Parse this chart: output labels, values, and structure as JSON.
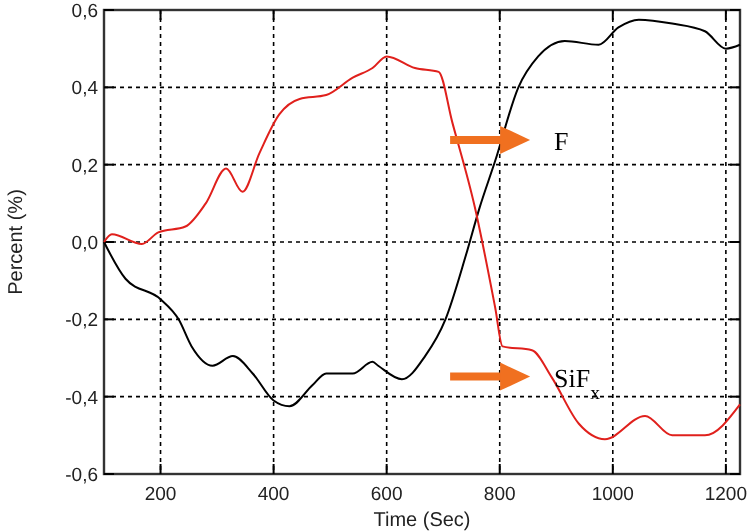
{
  "chart_data": {
    "type": "line",
    "xlabel": "Time (Sec)",
    "ylabel": "Percent (%)",
    "xlim": [
      100,
      1225
    ],
    "ylim": [
      -0.6,
      0.6
    ],
    "xticks": [
      200,
      400,
      600,
      800,
      1000,
      1200
    ],
    "yticks": [
      {
        "value": -0.6,
        "label": "-0,6"
      },
      {
        "value": -0.4,
        "label": "-0,4"
      },
      {
        "value": -0.2,
        "label": "-0,2"
      },
      {
        "value": 0,
        "label": "0,0"
      },
      {
        "value": 0.2,
        "label": "0,2"
      },
      {
        "value": 0.4,
        "label": "0,4"
      },
      {
        "value": 0.6,
        "label": "0,6"
      }
    ],
    "grid": true,
    "line_style": "solid",
    "marker": "none",
    "series": [
      {
        "name": "F",
        "color": "#000000",
        "x": [
          100,
          138,
          200,
          232,
          255,
          292,
          328,
          363,
          400,
          428,
          469,
          493,
          540,
          575,
          585,
          627,
          668,
          704,
          740,
          764,
          792,
          833,
          868,
          915,
          975,
          1010,
          1046,
          1105,
          1163,
          1200,
          1225
        ],
        "values": [
          0,
          -0.095,
          -0.148,
          -0.2,
          -0.27,
          -0.32,
          -0.295,
          -0.34,
          -0.41,
          -0.425,
          -0.37,
          -0.34,
          -0.34,
          -0.31,
          -0.32,
          -0.355,
          -0.295,
          -0.2,
          -0.035,
          0.087,
          0.21,
          0.4,
          0.48,
          0.52,
          0.51,
          0.555,
          0.575,
          0.565,
          0.545,
          0.5,
          0.51
        ]
      },
      {
        "name": "SiF$_{x}$",
        "color": "#e0201c",
        "x": [
          100,
          114,
          167,
          196,
          244,
          280,
          316,
          345,
          375,
          410,
          446,
          493,
          540,
          575,
          600,
          650,
          692,
          716,
          756,
          792,
          805,
          857,
          892,
          940,
          986,
          1057,
          1105,
          1163,
          1225
        ],
        "values": [
          0,
          0.02,
          -0.005,
          0.025,
          0.04,
          0.1,
          0.19,
          0.13,
          0.23,
          0.33,
          0.37,
          0.38,
          0.425,
          0.45,
          0.48,
          0.45,
          0.44,
          0.31,
          0.09,
          -0.17,
          -0.27,
          -0.28,
          -0.35,
          -0.47,
          -0.51,
          -0.45,
          -0.5,
          -0.5,
          -0.42
        ]
      }
    ]
  }
}
